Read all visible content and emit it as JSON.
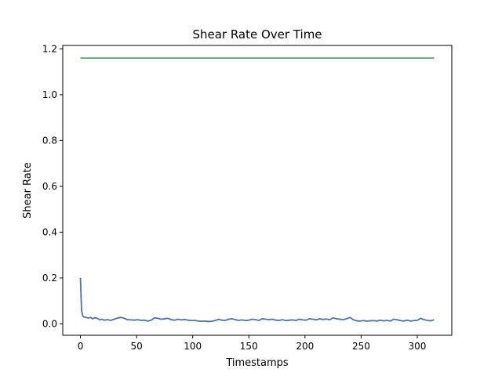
{
  "chart_data": {
    "type": "line",
    "title": "Shear Rate Over Time",
    "xlabel": "Timestamps",
    "ylabel": "Shear Rate",
    "xlim": [
      -15.75,
      330.75
    ],
    "ylim": [
      -0.05,
      1.215
    ],
    "x_ticks": [
      0,
      50,
      100,
      150,
      200,
      250,
      300
    ],
    "x_tick_labels": [
      "0",
      "50",
      "100",
      "150",
      "200",
      "250",
      "300"
    ],
    "y_ticks": [
      0.0,
      0.2,
      0.4,
      0.6,
      0.8,
      1.0,
      1.2
    ],
    "y_tick_labels": [
      "0.0",
      "0.2",
      "0.4",
      "0.6",
      "0.8",
      "1.0",
      "1.2"
    ],
    "grid": false,
    "legend": "none",
    "series": [
      {
        "color": "#4c72b0",
        "x": [
          0,
          1,
          2,
          3,
          5,
          7,
          9,
          11,
          13,
          15,
          17,
          19,
          21,
          24,
          27,
          30,
          33,
          36,
          39,
          42,
          45,
          48,
          51,
          54,
          57,
          60,
          63,
          66,
          69,
          72,
          75,
          78,
          81,
          84,
          87,
          90,
          93,
          96,
          99,
          102,
          105,
          108,
          111,
          114,
          117,
          120,
          123,
          126,
          129,
          132,
          135,
          138,
          141,
          144,
          147,
          150,
          153,
          156,
          159,
          162,
          165,
          168,
          171,
          174,
          177,
          180,
          183,
          186,
          189,
          192,
          195,
          198,
          201,
          204,
          207,
          210,
          213,
          216,
          219,
          222,
          225,
          228,
          231,
          234,
          237,
          240,
          243,
          246,
          249,
          252,
          255,
          258,
          261,
          264,
          267,
          270,
          273,
          276,
          279,
          282,
          285,
          288,
          291,
          294,
          297,
          300,
          303,
          306,
          309,
          312,
          315
        ],
        "y": [
          0.2,
          0.06,
          0.035,
          0.03,
          0.028,
          0.025,
          0.028,
          0.022,
          0.026,
          0.024,
          0.018,
          0.02,
          0.016,
          0.018,
          0.015,
          0.02,
          0.025,
          0.028,
          0.024,
          0.018,
          0.017,
          0.016,
          0.018,
          0.015,
          0.016,
          0.012,
          0.016,
          0.026,
          0.024,
          0.02,
          0.022,
          0.024,
          0.018,
          0.016,
          0.02,
          0.017,
          0.019,
          0.016,
          0.014,
          0.015,
          0.012,
          0.011,
          0.012,
          0.01,
          0.011,
          0.014,
          0.02,
          0.016,
          0.015,
          0.02,
          0.022,
          0.018,
          0.015,
          0.017,
          0.014,
          0.016,
          0.02,
          0.018,
          0.015,
          0.022,
          0.02,
          0.018,
          0.02,
          0.016,
          0.015,
          0.018,
          0.014,
          0.016,
          0.017,
          0.015,
          0.02,
          0.017,
          0.016,
          0.022,
          0.02,
          0.017,
          0.022,
          0.019,
          0.021,
          0.018,
          0.026,
          0.022,
          0.02,
          0.018,
          0.022,
          0.028,
          0.018,
          0.013,
          0.012,
          0.014,
          0.012,
          0.013,
          0.014,
          0.012,
          0.016,
          0.013,
          0.015,
          0.012,
          0.02,
          0.018,
          0.014,
          0.012,
          0.016,
          0.012,
          0.014,
          0.015,
          0.024,
          0.018,
          0.015,
          0.013,
          0.018
        ]
      },
      {
        "color": "#55a868",
        "x": [
          0,
          315
        ],
        "y": [
          1.16,
          1.16
        ]
      }
    ]
  }
}
